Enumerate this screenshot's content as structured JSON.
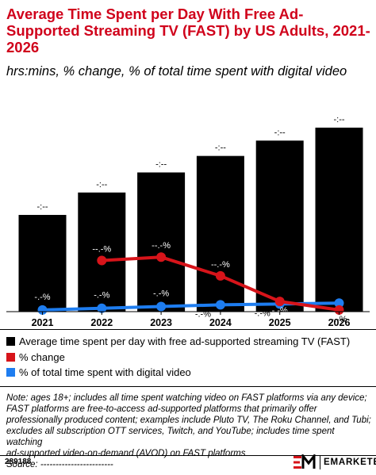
{
  "header": {
    "title": "Average Time Spent per Day With Free Ad-Supported Streaming TV (FAST) by US Adults, 2021-2026",
    "subtitle": "hrs:mins, % change, % of total time spent with digital video"
  },
  "chart_data": {
    "type": "bar",
    "categories": [
      "2021",
      "2022",
      "2023",
      "2024",
      "2025",
      "2026"
    ],
    "series": [
      {
        "name": "Average time spent per day with free ad-supported streaming TV (FAST)",
        "type": "bar",
        "values": [
          0.82,
          1.01,
          1.18,
          1.32,
          1.45,
          1.56
        ],
        "labels": [
          "-:--",
          "-:--",
          "-:--",
          "-:--",
          "-:--",
          "-:--"
        ]
      },
      {
        "name": "% change",
        "type": "line",
        "values": [
          null,
          30,
          32,
          21,
          6,
          1
        ],
        "labels": [
          "",
          "--.-%",
          "--.-%",
          "--.-%",
          "-.-%",
          "-.-%"
        ]
      },
      {
        "name": "% of total time spent with digital video",
        "type": "line",
        "values": [
          1,
          2,
          3,
          4,
          4.5,
          5
        ],
        "labels": [
          "-.-%",
          "-.-%",
          "-.-%",
          "-.-%",
          "-.-%",
          "-.-%"
        ]
      }
    ],
    "colors": {
      "bar": "#000000",
      "change": "#d7141a",
      "share": "#1e7df0"
    },
    "legend_position": "bottom",
    "grid": false
  },
  "note": {
    "lines": [
      "Note: ages 18+; includes all time spent watching video on FAST platforms via any device;",
      "FAST platforms are free-to-access ad-supported platforms that primarily offer",
      "professionally produced content; examples include Pluto TV, The Roku Channel, and Tubi;",
      "excludes all subscription OTT services, Twitch, and YouTube; includes time spent watching",
      "ad-supported video-on-demand (AVOD) on FAST platforms",
      "Source: ------------------------"
    ]
  },
  "footer": {
    "chart_id": "289188",
    "brand": "EMARKETER",
    "brand_logo_text": "EM"
  }
}
